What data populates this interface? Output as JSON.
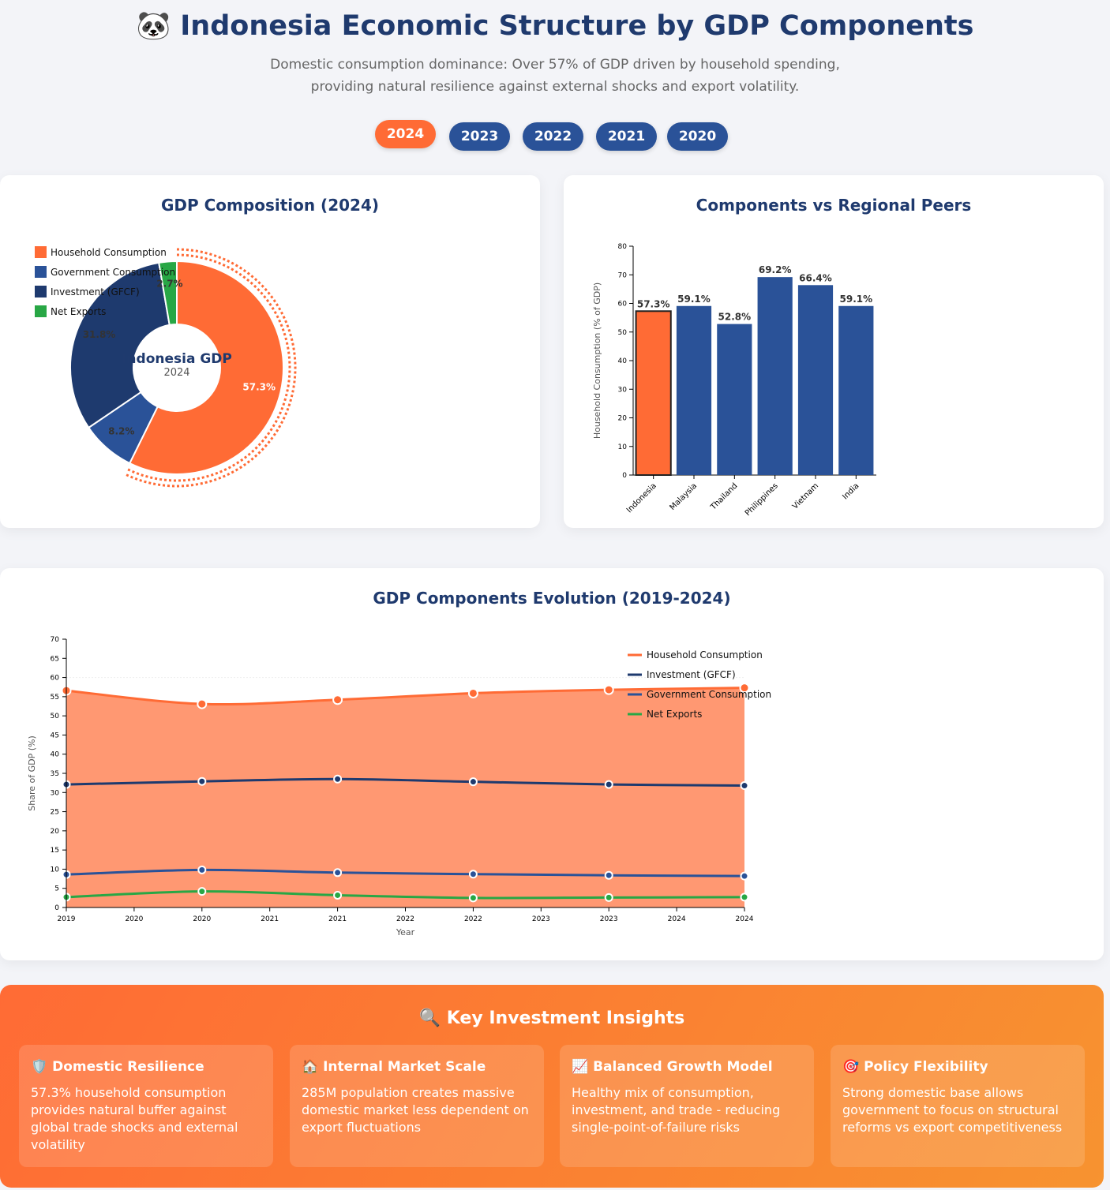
{
  "header": {
    "title": "🐼 Indonesia Economic Structure by GDP Components",
    "subtitle": "Domestic consumption dominance: Over 57% of GDP driven by household spending, providing natural resilience against external shocks and export volatility."
  },
  "year_tabs": [
    {
      "label": "2024",
      "active": true
    },
    {
      "label": "2023",
      "active": false
    },
    {
      "label": "2022",
      "active": false
    },
    {
      "label": "2021",
      "active": false
    },
    {
      "label": "2020",
      "active": false
    }
  ],
  "pie_card": {
    "title": "GDP Composition (2024)",
    "center_title": "Indonesia GDP",
    "center_sub": "2024"
  },
  "bar_card": {
    "title": "Components vs Regional Peers"
  },
  "line_card": {
    "title": "GDP Components Evolution (2019-2024)"
  },
  "colors": {
    "household": "#ff6b35",
    "government": "#2a5298",
    "investment": "#1e3a6e",
    "net_exports": "#28a745",
    "area_fill": "#ff9872"
  },
  "chart_data": [
    {
      "type": "pie",
      "title": "GDP Composition (2024)",
      "slices": [
        {
          "name": "Household Consumption",
          "value": 57.3,
          "label": "57.3%",
          "color": "#ff6b35"
        },
        {
          "name": "Government Consumption",
          "value": 8.2,
          "label": "8.2%",
          "color": "#2a5298"
        },
        {
          "name": "Investment (GFCF)",
          "value": 31.8,
          "label": "31.8%",
          "color": "#1e3a6e"
        },
        {
          "name": "Net Exports",
          "value": 2.7,
          "label": "2.7%",
          "color": "#28a745"
        }
      ],
      "legend": [
        "Household Consumption",
        "Government Consumption",
        "Investment (GFCF)",
        "Net Exports"
      ],
      "legend_position": "top-left"
    },
    {
      "type": "bar",
      "title": "Components vs Regional Peers",
      "categories": [
        "Indonesia",
        "Malaysia",
        "Thailand",
        "Philippines",
        "Vietnam",
        "India"
      ],
      "values": [
        57.3,
        59.1,
        52.8,
        69.2,
        66.4,
        59.1
      ],
      "labels": [
        "57.3%",
        "59.1%",
        "52.8%",
        "69.2%",
        "66.4%",
        "59.1%"
      ],
      "ylabel": "Household Consumption (% of GDP)",
      "ylim": [
        0,
        80
      ],
      "yticks": [
        0,
        10,
        20,
        30,
        40,
        50,
        60,
        70,
        80
      ],
      "highlight": "Indonesia"
    },
    {
      "type": "line",
      "title": "GDP Components Evolution (2019-2024)",
      "x": [
        2019,
        2020,
        2021,
        2022,
        2023,
        2024
      ],
      "xticks": [
        "2019",
        "2020",
        "2020",
        "2021",
        "2021",
        "2022",
        "2022",
        "2023",
        "2023",
        "2024",
        "2024"
      ],
      "xlabel": "Year",
      "ylabel": "Share of GDP (%)",
      "ylim": [
        0,
        70
      ],
      "yticks": [
        0,
        5,
        10,
        15,
        20,
        25,
        30,
        35,
        40,
        45,
        50,
        55,
        60,
        65,
        70
      ],
      "series": [
        {
          "name": "Household Consumption",
          "values": [
            56.6,
            53.1,
            54.2,
            55.9,
            56.8,
            57.3
          ],
          "color": "#ff6b35",
          "area": true
        },
        {
          "name": "Investment (GFCF)",
          "values": [
            32.1,
            32.9,
            33.5,
            32.8,
            32.1,
            31.8
          ],
          "color": "#1e3a6e"
        },
        {
          "name": "Government Consumption",
          "values": [
            8.6,
            9.8,
            9.1,
            8.7,
            8.4,
            8.2
          ],
          "color": "#2a5298"
        },
        {
          "name": "Net Exports",
          "values": [
            2.7,
            4.2,
            3.2,
            2.5,
            2.6,
            2.7
          ],
          "color": "#28a745"
        }
      ],
      "legend": [
        "Household Consumption",
        "Investment (GFCF)",
        "Government Consumption",
        "Net Exports"
      ],
      "legend_position": "top-right"
    }
  ],
  "insights": {
    "title": "🔍 Key Investment Insights",
    "cards": [
      {
        "icon": "🛡️",
        "title": "Domestic Resilience",
        "text": "57.3% household consumption provides natural buffer against global trade shocks and external volatility"
      },
      {
        "icon": "🏠",
        "title": "Internal Market Scale",
        "text": "285M population creates massive domestic market less dependent on export fluctuations"
      },
      {
        "icon": "📈",
        "title": "Balanced Growth Model",
        "text": "Healthy mix of consumption, investment, and trade - reducing single-point-of-failure risks"
      },
      {
        "icon": "🎯",
        "title": "Policy Flexibility",
        "text": "Strong domestic base allows government to focus on structural reforms vs export competitiveness"
      }
    ]
  }
}
